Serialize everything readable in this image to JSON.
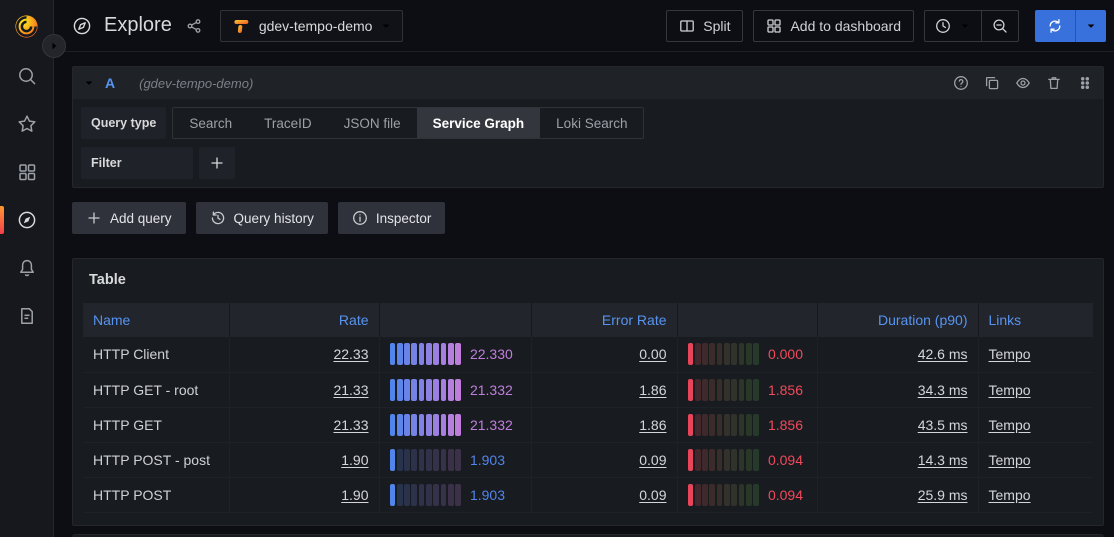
{
  "topbar": {
    "page_title": "Explore",
    "datasource": "gdev-tempo-demo",
    "buttons": {
      "split": "Split",
      "add_to_dashboard": "Add to dashboard"
    }
  },
  "sidebar": {
    "items": [
      "search",
      "starred",
      "apps",
      "explore",
      "alerting",
      "documentation"
    ],
    "active": "explore"
  },
  "query_editor": {
    "ref_id": "A",
    "datasource_hint": "(gdev-tempo-demo)",
    "query_type_label": "Query type",
    "query_types": [
      "Search",
      "TraceID",
      "JSON file",
      "Service Graph",
      "Loki Search"
    ],
    "active_query_type": "Service Graph",
    "filter_label": "Filter"
  },
  "toolbar": {
    "add_query": "Add query",
    "query_history": "Query history",
    "inspector": "Inspector"
  },
  "table_panel": {
    "title": "Table",
    "columns": [
      "Name",
      "Rate",
      "",
      "Error Rate",
      "",
      "Duration (p90)",
      "Links"
    ],
    "gauge_cells_total": 10,
    "rows": [
      {
        "name": "HTTP Client",
        "rate": "22.33",
        "rate_gauge_value": "22.330",
        "rate_cells_lit": 10,
        "error_rate": "0.00",
        "error_gauge_value": "0.000",
        "error_cells_lit": 1,
        "duration": "42.6 ms",
        "link": "Tempo"
      },
      {
        "name": "HTTP GET - root",
        "rate": "21.33",
        "rate_gauge_value": "21.332",
        "rate_cells_lit": 10,
        "error_rate": "1.86",
        "error_gauge_value": "1.856",
        "error_cells_lit": 1,
        "duration": "34.3 ms",
        "link": "Tempo"
      },
      {
        "name": "HTTP GET",
        "rate": "21.33",
        "rate_gauge_value": "21.332",
        "rate_cells_lit": 10,
        "error_rate": "1.86",
        "error_gauge_value": "1.856",
        "error_cells_lit": 1,
        "duration": "43.5 ms",
        "link": "Tempo"
      },
      {
        "name": "HTTP POST - post",
        "rate": "1.90",
        "rate_gauge_value": "1.903",
        "rate_cells_lit": 1,
        "error_rate": "0.09",
        "error_gauge_value": "0.094",
        "error_cells_lit": 1,
        "duration": "14.3 ms",
        "link": "Tempo"
      },
      {
        "name": "HTTP POST",
        "rate": "1.90",
        "rate_gauge_value": "1.903",
        "rate_cells_lit": 1,
        "error_rate": "0.09",
        "error_gauge_value": "0.094",
        "error_cells_lit": 1,
        "duration": "25.9 ms",
        "link": "Tempo"
      }
    ]
  },
  "colors": {
    "accent_blue": "#3871DC",
    "header_link_blue": "#5794F2",
    "rate_gauge_start": "#5185EB",
    "rate_gauge_end": "#C07EDC",
    "error_gauge_start": "#E8455A",
    "error_gauge_end": "#56A64B",
    "error_value_text": "#F2495C",
    "panel_bg": "#181B1F",
    "active_indicator_top": "#FF9830",
    "active_indicator_bottom": "#F53E4C"
  }
}
